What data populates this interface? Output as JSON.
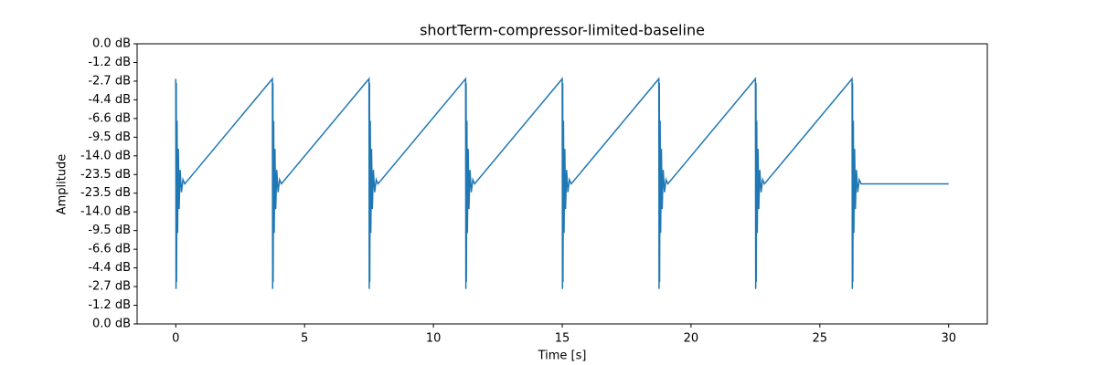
{
  "chart_data": {
    "type": "line",
    "title": "shortTerm-compressor-limited-baseline",
    "xlabel": "Time [s]",
    "ylabel": "Amplitude",
    "color": "#1f77b4",
    "x": [
      0,
      0.01,
      0.02,
      0.03,
      0.05,
      0.07,
      0.1,
      0.13,
      0.17,
      0.22,
      0.28,
      0.35,
      3.75,
      3.76,
      3.77,
      3.78,
      3.8,
      3.82,
      3.85,
      3.88,
      3.92,
      3.97,
      4.03,
      4.1,
      7.5,
      7.51,
      7.52,
      7.53,
      7.55,
      7.57,
      7.6,
      7.63,
      7.67,
      7.72,
      7.78,
      7.85,
      11.25,
      11.26,
      11.27,
      11.28,
      11.3,
      11.32,
      11.35,
      11.38,
      11.42,
      11.47,
      11.53,
      11.6,
      15,
      15.01,
      15.02,
      15.03,
      15.05,
      15.07,
      15.1,
      15.13,
      15.17,
      15.22,
      15.28,
      15.35,
      18.75,
      18.76,
      18.77,
      18.78,
      18.8,
      18.82,
      18.85,
      18.88,
      18.92,
      18.97,
      19.03,
      19.1,
      22.5,
      22.51,
      22.52,
      22.53,
      22.55,
      22.57,
      22.6,
      22.63,
      22.67,
      22.72,
      22.78,
      22.85,
      26.25,
      26.26,
      26.27,
      26.28,
      26.3,
      26.32,
      26.35,
      26.38,
      26.42,
      26.47,
      26.53,
      26.6,
      30
    ],
    "values": [
      0.75,
      -0.75,
      0.72,
      -0.7,
      0.45,
      -0.35,
      0.25,
      -0.18,
      0.1,
      -0.06,
      0.03,
      0,
      0.75,
      -0.75,
      0.72,
      -0.7,
      0.45,
      -0.35,
      0.25,
      -0.18,
      0.1,
      -0.06,
      0.03,
      0,
      0.75,
      -0.75,
      0.72,
      -0.7,
      0.45,
      -0.35,
      0.25,
      -0.18,
      0.1,
      -0.06,
      0.03,
      0,
      0.75,
      -0.75,
      0.72,
      -0.7,
      0.45,
      -0.35,
      0.25,
      -0.18,
      0.1,
      -0.06,
      0.03,
      0,
      0.75,
      -0.75,
      0.72,
      -0.7,
      0.45,
      -0.35,
      0.25,
      -0.18,
      0.1,
      -0.06,
      0.03,
      0,
      0.75,
      -0.75,
      0.72,
      -0.7,
      0.45,
      -0.35,
      0.25,
      -0.18,
      0.1,
      -0.06,
      0.03,
      0,
      0.75,
      -0.75,
      0.72,
      -0.7,
      0.45,
      -0.35,
      0.25,
      -0.18,
      0.1,
      -0.06,
      0.03,
      0,
      0.75,
      -0.75,
      0.72,
      -0.7,
      0.45,
      -0.35,
      0.25,
      -0.18,
      0.1,
      -0.06,
      0.03,
      0,
      0
    ],
    "xlim": [
      -1.5,
      31.5
    ],
    "xticks": [
      0,
      5,
      10,
      15,
      20,
      25,
      30
    ],
    "ylim": [
      -1,
      1
    ],
    "yticks": [
      {
        "value": -1,
        "label": "0.0 dB"
      },
      {
        "value": -0.8667,
        "label": "-1.2 dB"
      },
      {
        "value": -0.7333,
        "label": "-2.7 dB"
      },
      {
        "value": -0.6,
        "label": "-4.4 dB"
      },
      {
        "value": -0.4667,
        "label": "-6.6 dB"
      },
      {
        "value": -0.3333,
        "label": "-9.5 dB"
      },
      {
        "value": -0.2,
        "label": "-14.0 dB"
      },
      {
        "value": -0.0667,
        "label": "-23.5 dB"
      },
      {
        "value": 0.0667,
        "label": "-23.5 dB"
      },
      {
        "value": 0.2,
        "label": "-14.0 dB"
      },
      {
        "value": 0.3333,
        "label": "-9.5 dB"
      },
      {
        "value": 0.4667,
        "label": "-6.6 dB"
      },
      {
        "value": 0.6,
        "label": "-4.4 dB"
      },
      {
        "value": 0.7333,
        "label": "-2.7 dB"
      },
      {
        "value": 0.8667,
        "label": "-1.2 dB"
      },
      {
        "value": 1,
        "label": "0.0 dB"
      }
    ]
  }
}
